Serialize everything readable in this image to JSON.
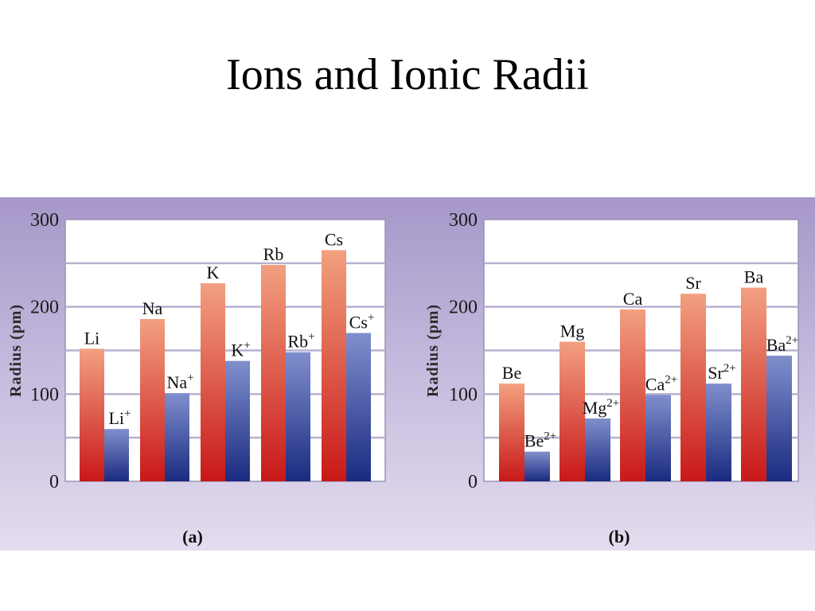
{
  "slide": {
    "title": "Ions and Ionic Radii"
  },
  "chart_data": [
    {
      "type": "bar",
      "panel_label": "(a)",
      "ylabel": "Radius (pm)",
      "ylim": [
        0,
        300
      ],
      "yticks": [
        0,
        100,
        200,
        300
      ],
      "grid": true,
      "groups": [
        {
          "atom": {
            "symbol": "Li",
            "charge": ""
          },
          "ion": {
            "symbol": "Li",
            "charge": "+"
          },
          "atom_value": 152,
          "ion_value": 60
        },
        {
          "atom": {
            "symbol": "Na",
            "charge": ""
          },
          "ion": {
            "symbol": "Na",
            "charge": "+"
          },
          "atom_value": 186,
          "ion_value": 101
        },
        {
          "atom": {
            "symbol": "K",
            "charge": ""
          },
          "ion": {
            "symbol": "K",
            "charge": "+"
          },
          "atom_value": 227,
          "ion_value": 138
        },
        {
          "atom": {
            "symbol": "Rb",
            "charge": ""
          },
          "ion": {
            "symbol": "Rb",
            "charge": "+"
          },
          "atom_value": 248,
          "ion_value": 148
        },
        {
          "atom": {
            "symbol": "Cs",
            "charge": ""
          },
          "ion": {
            "symbol": "Cs",
            "charge": "+"
          },
          "atom_value": 265,
          "ion_value": 170
        }
      ]
    },
    {
      "type": "bar",
      "panel_label": "(b)",
      "ylabel": "Radius (pm)",
      "ylim": [
        0,
        300
      ],
      "yticks": [
        0,
        100,
        200,
        300
      ],
      "grid": true,
      "groups": [
        {
          "atom": {
            "symbol": "Be",
            "charge": ""
          },
          "ion": {
            "symbol": "Be",
            "charge": "2+"
          },
          "atom_value": 112,
          "ion_value": 34
        },
        {
          "atom": {
            "symbol": "Mg",
            "charge": ""
          },
          "ion": {
            "symbol": "Mg",
            "charge": "2+"
          },
          "atom_value": 160,
          "ion_value": 72
        },
        {
          "atom": {
            "symbol": "Ca",
            "charge": ""
          },
          "ion": {
            "symbol": "Ca",
            "charge": "2+"
          },
          "atom_value": 197,
          "ion_value": 99
        },
        {
          "atom": {
            "symbol": "Sr",
            "charge": ""
          },
          "ion": {
            "symbol": "Sr",
            "charge": "2+"
          },
          "atom_value": 215,
          "ion_value": 112
        },
        {
          "atom": {
            "symbol": "Ba",
            "charge": ""
          },
          "ion": {
            "symbol": "Ba",
            "charge": "2+"
          },
          "atom_value": 222,
          "ion_value": 144
        }
      ]
    }
  ],
  "colors": {
    "atom_top": "#f2a080",
    "atom_bottom": "#c81818",
    "ion_top": "#7f8fcc",
    "ion_bottom": "#1a2a80",
    "plot_bg": "#ffffff",
    "grid": "#b9b0cf"
  }
}
